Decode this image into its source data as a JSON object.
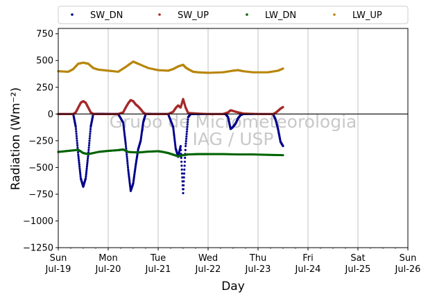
{
  "chart_data": {
    "type": "scatter",
    "xlabel": "Day",
    "ylabel": "Radiation (Wm⁻²)",
    "ylim": [
      -1250,
      800
    ],
    "yticks": [
      -1250,
      -1000,
      -750,
      -500,
      -250,
      0,
      250,
      500,
      750
    ],
    "xlim": [
      0,
      7
    ],
    "xticks": [
      {
        "x": 0,
        "day": "Sun",
        "date": "Jul-19"
      },
      {
        "x": 1,
        "day": "Mon",
        "date": "Jul-20"
      },
      {
        "x": 2,
        "day": "Tue",
        "date": "Jul-21"
      },
      {
        "x": 3,
        "day": "Wed",
        "date": "Jul-22"
      },
      {
        "x": 4,
        "day": "Thu",
        "date": "Jul-23"
      },
      {
        "x": 5,
        "day": "Fri",
        "date": "Jul-24"
      },
      {
        "x": 6,
        "day": "Sat",
        "date": "Jul-25"
      },
      {
        "x": 7,
        "day": "Sun",
        "date": "Jul-26"
      }
    ],
    "grid": "vertical",
    "zero_line": true,
    "legend_placement": "top, outside plot, 4 columns",
    "watermark": [
      "Grupo de Micrometeorologia",
      "IAG / USP"
    ],
    "series": [
      {
        "name": "SW_DN",
        "color": "#00008b",
        "x": [
          0.0,
          0.3,
          0.35,
          0.4,
          0.45,
          0.5,
          0.55,
          0.6,
          0.65,
          0.7,
          0.75,
          0.8,
          0.85,
          0.9,
          1.0,
          1.2,
          1.3,
          1.35,
          1.4,
          1.45,
          1.5,
          1.55,
          1.6,
          1.65,
          1.7,
          1.75,
          1.8,
          1.85,
          2.0,
          2.2,
          2.3,
          2.35,
          2.4,
          2.45,
          2.5,
          2.55,
          2.6,
          2.65,
          2.7,
          3.0,
          3.3,
          3.35,
          3.4,
          3.45,
          3.5,
          3.55,
          3.6,
          3.65,
          3.7,
          3.9,
          4.3,
          4.35,
          4.4,
          4.45,
          4.5
        ],
        "y": [
          0,
          0,
          -120,
          -380,
          -600,
          -680,
          -600,
          -380,
          -120,
          0,
          0,
          0,
          0,
          0,
          0,
          0,
          -80,
          -280,
          -520,
          -720,
          -650,
          -480,
          -330,
          -250,
          -80,
          0,
          0,
          0,
          0,
          0,
          -120,
          -320,
          -400,
          -300,
          -740,
          -300,
          -30,
          0,
          0,
          0,
          0,
          0,
          -30,
          -140,
          -120,
          -90,
          -40,
          -10,
          0,
          0,
          0,
          -50,
          -140,
          -260,
          -300
        ]
      },
      {
        "name": "SW_UP",
        "color": "#a52a2a",
        "x": [
          0.0,
          0.3,
          0.35,
          0.4,
          0.45,
          0.5,
          0.55,
          0.6,
          0.65,
          0.7,
          0.75,
          1.0,
          1.2,
          1.3,
          1.35,
          1.4,
          1.45,
          1.5,
          1.55,
          1.6,
          1.65,
          1.7,
          1.75,
          2.0,
          2.2,
          2.3,
          2.35,
          2.4,
          2.45,
          2.5,
          2.55,
          2.6,
          3.0,
          3.3,
          3.4,
          3.45,
          3.5,
          3.6,
          3.7,
          4.0,
          4.3,
          4.35,
          4.4,
          4.45,
          4.5
        ],
        "y": [
          0,
          0,
          15,
          60,
          105,
          120,
          105,
          60,
          15,
          0,
          0,
          0,
          0,
          15,
          60,
          100,
          130,
          120,
          90,
          70,
          45,
          15,
          0,
          0,
          0,
          20,
          55,
          80,
          60,
          140,
          60,
          10,
          0,
          0,
          15,
          35,
          28,
          15,
          5,
          0,
          0,
          10,
          30,
          50,
          65
        ]
      },
      {
        "name": "LW_DN",
        "color": "#006400",
        "x": [
          0.0,
          0.2,
          0.4,
          0.5,
          0.6,
          0.8,
          1.0,
          1.2,
          1.3,
          1.4,
          1.6,
          1.8,
          2.0,
          2.1,
          2.2,
          2.3,
          2.4,
          2.5,
          2.6,
          2.8,
          3.0,
          3.3,
          3.6,
          3.9,
          4.2,
          4.5
        ],
        "y": [
          -355,
          -345,
          -335,
          -365,
          -375,
          -355,
          -345,
          -338,
          -332,
          -355,
          -360,
          -352,
          -348,
          -355,
          -365,
          -380,
          -395,
          -385,
          -378,
          -375,
          -375,
          -375,
          -378,
          -378,
          -382,
          -385
        ]
      },
      {
        "name": "LW_UP",
        "color": "#b8860b",
        "x": [
          0.0,
          0.2,
          0.3,
          0.4,
          0.5,
          0.6,
          0.7,
          0.8,
          1.0,
          1.2,
          1.35,
          1.5,
          1.6,
          1.8,
          2.0,
          2.2,
          2.3,
          2.4,
          2.5,
          2.55,
          2.6,
          2.7,
          2.8,
          3.0,
          3.3,
          3.5,
          3.6,
          3.7,
          3.9,
          4.2,
          4.4,
          4.5
        ],
        "y": [
          400,
          395,
          420,
          470,
          480,
          470,
          430,
          415,
          405,
          395,
          440,
          490,
          470,
          430,
          410,
          405,
          420,
          445,
          460,
          435,
          420,
          395,
          390,
          385,
          390,
          405,
          410,
          400,
          390,
          390,
          405,
          425
        ]
      }
    ]
  }
}
